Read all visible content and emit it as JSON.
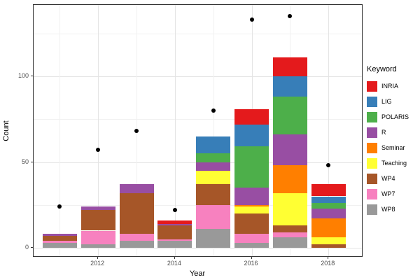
{
  "chart_data": {
    "type": "bar",
    "stacked": true,
    "title": "",
    "xlabel": "Year",
    "ylabel": "Count",
    "legend_title": "Keyword",
    "legend_position": "right",
    "grid": true,
    "categories": [
      "2011",
      "2012",
      "2013",
      "2014",
      "2015",
      "2016",
      "2017",
      "2018"
    ],
    "x_major_tick_labels": [
      "2012",
      "2014",
      "2016",
      "2018"
    ],
    "y_major_ticks": [
      0,
      50,
      100
    ],
    "y_minor_ticks": [
      25,
      75,
      125
    ],
    "ylim": [
      -7,
      142
    ],
    "stack_order_bottom_to_top": [
      "WP8",
      "WP7",
      "WP4",
      "Teaching",
      "Seminar",
      "R",
      "POLARIS",
      "LIG",
      "INRIA"
    ],
    "series": [
      {
        "name": "INRIA",
        "color": "#E41A1C",
        "values": [
          0,
          0,
          0,
          2,
          0,
          9,
          11,
          7
        ]
      },
      {
        "name": "LIG",
        "color": "#377EB8",
        "values": [
          0,
          0,
          0,
          0,
          10,
          13,
          12,
          4
        ]
      },
      {
        "name": "POLARIS",
        "color": "#4DAF4A",
        "values": [
          0,
          0,
          0,
          0,
          5,
          24,
          22,
          3
        ]
      },
      {
        "name": "R",
        "color": "#984EA3",
        "values": [
          1,
          2,
          5,
          1,
          5,
          10,
          18,
          6
        ]
      },
      {
        "name": "Seminar",
        "color": "#FF7F00",
        "values": [
          0,
          0,
          0,
          0,
          0,
          1,
          16,
          11
        ]
      },
      {
        "name": "Teaching",
        "color": "#FFFF33",
        "values": [
          0,
          0,
          0,
          0,
          8,
          4,
          19,
          4
        ]
      },
      {
        "name": "WP4",
        "color": "#A65628",
        "values": [
          3,
          12,
          24,
          8,
          12,
          12,
          4,
          2
        ]
      },
      {
        "name": "WP7",
        "color": "#F781BF",
        "values": [
          1,
          8,
          4,
          1,
          14,
          5,
          3,
          0
        ]
      },
      {
        "name": "WP8",
        "color": "#999999",
        "values": [
          3,
          2,
          4,
          4,
          11,
          3,
          6,
          0
        ]
      }
    ],
    "points": {
      "color": "#000000",
      "values": [
        24,
        57,
        68,
        22,
        80,
        133,
        135,
        48
      ]
    }
  }
}
